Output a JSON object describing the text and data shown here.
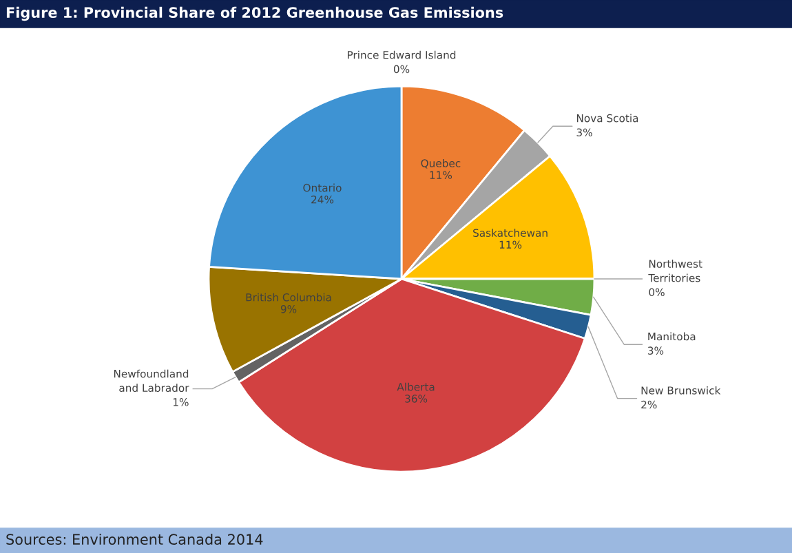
{
  "chart_data": {
    "type": "pie",
    "title": "Figure 1: Provincial Share of 2012 Greenhouse Gas Emissions",
    "categories": [
      "Prince Edward Island",
      "Quebec",
      "Nova Scotia",
      "Saskatchewan",
      "Northwest Territories",
      "Manitoba",
      "New Brunswick",
      "Alberta",
      "Newfoundland and Labrador",
      "British Columbia",
      "Ontario"
    ],
    "values": [
      0,
      11,
      3,
      11,
      0,
      3,
      2,
      36,
      1,
      9,
      24
    ],
    "colors": [
      "#5b9bd5",
      "#ed7d31",
      "#a5a5a5",
      "#ffc000",
      "#4472c4",
      "#70ad47",
      "#255e91",
      "#d24141",
      "#636363",
      "#997300",
      "#3e93d3"
    ],
    "value_labels": [
      "0%",
      "11%",
      "3%",
      "11%",
      "0%",
      "3%",
      "2%",
      "36%",
      "1%",
      "9%",
      "24%"
    ],
    "annotations": [
      "Sources: Environment Canada 2014"
    ]
  }
}
